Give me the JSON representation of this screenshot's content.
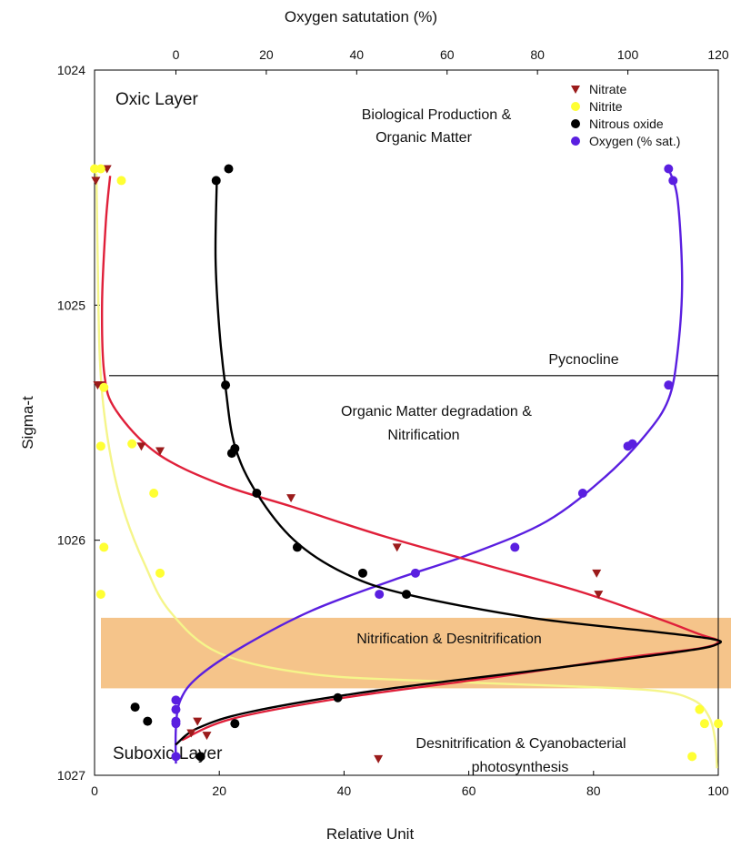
{
  "chart_data": {
    "type": "scatter",
    "x_axis_bottom": {
      "label": "Relative Unit",
      "range": [
        0,
        100
      ],
      "ticks": [
        "0",
        "20",
        "40",
        "60",
        "80",
        "100"
      ]
    },
    "x_axis_top": {
      "label": "Oxygen satutation (%)",
      "range": [
        -18,
        120
      ],
      "ticks": [
        "0",
        "20",
        "40",
        "60",
        "80",
        "100",
        "120"
      ]
    },
    "y_axis": {
      "label": "Sigma-t",
      "range": [
        1024,
        1027
      ],
      "inverted": true,
      "ticks": [
        "1024",
        "1025",
        "1026",
        "1027"
      ]
    },
    "legend": {
      "placement": "top-right",
      "entries": [
        {
          "name": "Nitrate",
          "marker": "triangle-down",
          "color": "#9b1b1b"
        },
        {
          "name": "Nitrite",
          "marker": "circle",
          "color": "#ffff33"
        },
        {
          "name": "Nitrous oxide",
          "marker": "circle",
          "color": "#000000"
        },
        {
          "name": "Oxygen (% sat.)",
          "marker": "circle",
          "color": "#5a1fe0"
        }
      ]
    },
    "series": [
      {
        "name": "Nitrate",
        "axis": "bottom",
        "marker": "triangle-down",
        "color": "#9b1b1b",
        "line_color": "#e0203a",
        "points": [
          [
            0.2,
            1024.47
          ],
          [
            2.0,
            1024.42
          ],
          [
            0.5,
            1025.34
          ],
          [
            1.0,
            1025.34
          ],
          [
            7.5,
            1025.6
          ],
          [
            10.5,
            1025.62
          ],
          [
            31.5,
            1025.82
          ],
          [
            48.5,
            1026.03
          ],
          [
            80.5,
            1026.14
          ],
          [
            80.8,
            1026.23
          ],
          [
            16.5,
            1026.77
          ],
          [
            15.5,
            1026.82
          ],
          [
            18.0,
            1026.83
          ],
          [
            45.5,
            1026.93
          ]
        ],
        "curve": [
          [
            2.5,
            1024.45
          ],
          [
            1.8,
            1024.65
          ],
          [
            1.2,
            1025.0
          ],
          [
            1.6,
            1025.3
          ],
          [
            3.5,
            1025.45
          ],
          [
            10.0,
            1025.63
          ],
          [
            20.0,
            1025.76
          ],
          [
            32.0,
            1025.86
          ],
          [
            46.0,
            1025.98
          ],
          [
            62.0,
            1026.1
          ],
          [
            78.0,
            1026.22
          ],
          [
            90.0,
            1026.33
          ],
          [
            97.0,
            1026.4
          ],
          [
            100.0,
            1026.43
          ],
          [
            97.0,
            1026.46
          ],
          [
            85.0,
            1026.5
          ],
          [
            65.0,
            1026.58
          ],
          [
            40.0,
            1026.67
          ],
          [
            22.0,
            1026.76
          ],
          [
            14.0,
            1026.85
          ]
        ]
      },
      {
        "name": "Nitrite",
        "axis": "bottom",
        "marker": "circle",
        "color": "#ffff33",
        "line_color": "#f5f58a",
        "points": [
          [
            0.0,
            1024.42
          ],
          [
            1.0,
            1024.42
          ],
          [
            4.3,
            1024.47
          ],
          [
            1.5,
            1025.35
          ],
          [
            1.0,
            1025.6
          ],
          [
            6.0,
            1025.59
          ],
          [
            9.5,
            1025.8
          ],
          [
            1.5,
            1026.03
          ],
          [
            10.5,
            1026.14
          ],
          [
            1.0,
            1026.23
          ],
          [
            97.0,
            1026.72
          ],
          [
            97.8,
            1026.78
          ],
          [
            100.0,
            1026.78
          ],
          [
            95.8,
            1026.92
          ]
        ],
        "curve": [
          [
            0.3,
            1024.44
          ],
          [
            0.5,
            1024.8
          ],
          [
            0.8,
            1025.2
          ],
          [
            1.5,
            1025.45
          ],
          [
            3.0,
            1025.7
          ],
          [
            5.0,
            1025.9
          ],
          [
            8.0,
            1026.1
          ],
          [
            12.0,
            1026.3
          ],
          [
            20.0,
            1026.48
          ],
          [
            35.0,
            1026.57
          ],
          [
            55.0,
            1026.6
          ],
          [
            75.0,
            1026.62
          ],
          [
            90.0,
            1026.64
          ],
          [
            96.0,
            1026.68
          ],
          [
            98.5,
            1026.75
          ],
          [
            99.5,
            1026.85
          ],
          [
            99.8,
            1026.97
          ]
        ]
      },
      {
        "name": "Nitrous oxide",
        "axis": "bottom",
        "marker": "circle",
        "color": "#000000",
        "line_color": "#000000",
        "points": [
          [
            19.5,
            1024.47
          ],
          [
            21.5,
            1024.42
          ],
          [
            21.0,
            1025.34
          ],
          [
            22.0,
            1025.63
          ],
          [
            22.5,
            1025.61
          ],
          [
            26.0,
            1025.8
          ],
          [
            32.5,
            1026.03
          ],
          [
            43.0,
            1026.14
          ],
          [
            50.0,
            1026.23
          ],
          [
            6.5,
            1026.71
          ],
          [
            8.5,
            1026.77
          ],
          [
            22.5,
            1026.78
          ],
          [
            39.0,
            1026.67
          ],
          [
            17.0,
            1026.92
          ]
        ],
        "curve": [
          [
            19.6,
            1024.47
          ],
          [
            19.4,
            1024.8
          ],
          [
            20.0,
            1025.1
          ],
          [
            21.0,
            1025.35
          ],
          [
            22.5,
            1025.6
          ],
          [
            26.0,
            1025.8
          ],
          [
            32.0,
            1026.0
          ],
          [
            40.0,
            1026.14
          ],
          [
            50.0,
            1026.23
          ],
          [
            70.0,
            1026.33
          ],
          [
            90.0,
            1026.39
          ],
          [
            99.0,
            1026.42
          ],
          [
            100.0,
            1026.44
          ],
          [
            95.0,
            1026.47
          ],
          [
            75.0,
            1026.54
          ],
          [
            45.0,
            1026.64
          ],
          [
            25.0,
            1026.73
          ],
          [
            16.5,
            1026.8
          ],
          [
            13.0,
            1026.87
          ]
        ]
      },
      {
        "name": "Oxygen (% sat.)",
        "axis": "top",
        "marker": "circle",
        "color": "#5a1fe0",
        "line_color": "#5a1fe0",
        "points": [
          [
            109.0,
            1024.42
          ],
          [
            110.0,
            1024.47
          ],
          [
            109.0,
            1025.34
          ],
          [
            100.0,
            1025.6
          ],
          [
            101.0,
            1025.59
          ],
          [
            90.0,
            1025.8
          ],
          [
            75.0,
            1026.03
          ],
          [
            53.0,
            1026.14
          ],
          [
            45.0,
            1026.23
          ],
          [
            0.0,
            1026.68
          ],
          [
            0.0,
            1026.72
          ],
          [
            0.0,
            1026.77
          ],
          [
            0.0,
            1026.78
          ],
          [
            0.0,
            1026.92
          ]
        ],
        "curve": [
          [
            109.0,
            1024.42
          ],
          [
            111.0,
            1024.55
          ],
          [
            112.0,
            1024.9
          ],
          [
            111.0,
            1025.2
          ],
          [
            109.0,
            1025.4
          ],
          [
            104.0,
            1025.55
          ],
          [
            95.0,
            1025.73
          ],
          [
            82.0,
            1025.92
          ],
          [
            65.0,
            1026.06
          ],
          [
            48.0,
            1026.17
          ],
          [
            30.0,
            1026.3
          ],
          [
            15.0,
            1026.45
          ],
          [
            5.0,
            1026.58
          ],
          [
            1.0,
            1026.68
          ],
          [
            0.0,
            1026.8
          ],
          [
            0.0,
            1026.95
          ]
        ]
      }
    ],
    "pycnocline": {
      "sigma_t": 1025.3,
      "label": "Pycnocline"
    },
    "band": {
      "sigma_t_range": [
        1026.33,
        1026.63
      ],
      "color": "#f5c48a",
      "label": "Nitrification & Desnitrification"
    },
    "annotations": {
      "oxic_layer": "Oxic Layer",
      "suboxic_layer": "Suboxic Layer",
      "bio_line1": "Biological Production &",
      "bio_line2": "Organic Matter",
      "deg_line1": "Organic Matter degradation &",
      "deg_line2": "Nitrification",
      "den_line1": "Desnitrification & Cyanobacterial",
      "den_line2": "photosynthesis"
    }
  }
}
